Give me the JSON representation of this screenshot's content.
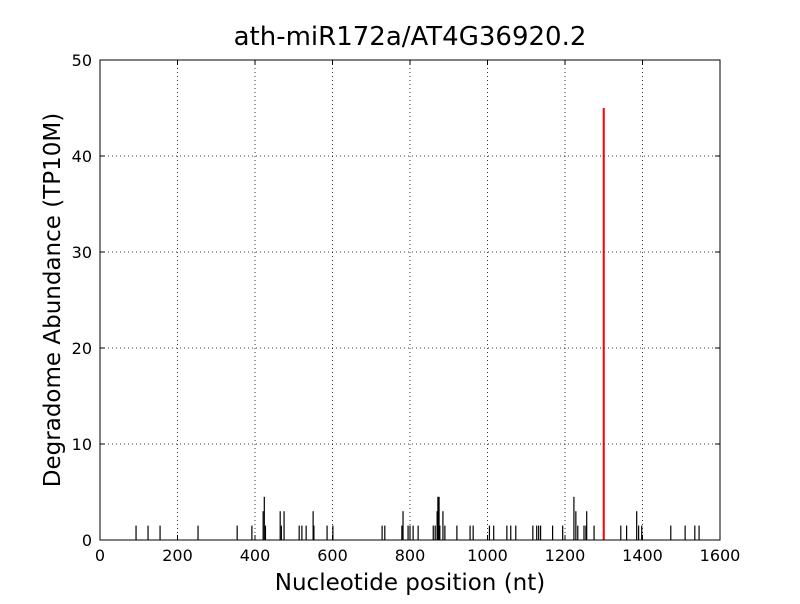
{
  "chart_data": {
    "type": "stem",
    "title": "ath-miR172a/AT4G36920.2",
    "x_label": "Nucleotide position (nt)",
    "y_label": "Degradome Abundance (TP10M)",
    "xlim": [
      0,
      1600
    ],
    "ylim": [
      0,
      50
    ],
    "xticks": [
      0,
      200,
      400,
      600,
      800,
      1000,
      1200,
      1400,
      1600
    ],
    "yticks": [
      0,
      10,
      20,
      30,
      40,
      50
    ],
    "grid": true,
    "series": [
      {
        "color": "#000000",
        "x": [
          93,
          124,
          155,
          253,
          354,
          392,
          421,
          424,
          427,
          465,
          468,
          475,
          514,
          521,
          532,
          550,
          552,
          586,
          601,
          728,
          735,
          779,
          782,
          795,
          800,
          808,
          821,
          860,
          865,
          870,
          872,
          875,
          877,
          885,
          890,
          921,
          955,
          963,
          1005,
          1016,
          1050,
          1060,
          1073,
          1117,
          1127,
          1132,
          1137,
          1168,
          1194,
          1223,
          1228,
          1233,
          1249,
          1254,
          1256,
          1275,
          1344,
          1359,
          1385,
          1390,
          1398,
          1473,
          1510,
          1535,
          1546
        ],
        "values": [
          1.5,
          1.5,
          1.5,
          1.5,
          1.5,
          1.5,
          3,
          4.5,
          1.5,
          3,
          1.5,
          3,
          1.5,
          1.5,
          1.5,
          3,
          1.5,
          1.5,
          1.5,
          1.5,
          1.5,
          1.5,
          3,
          1.5,
          1.5,
          1.5,
          1.5,
          1.5,
          1.5,
          3,
          4.5,
          4.5,
          1.5,
          3,
          1.5,
          1.5,
          1.5,
          1.5,
          1.5,
          1.5,
          1.5,
          1.5,
          1.5,
          1.5,
          1.5,
          1.5,
          1.5,
          1.5,
          1.5,
          4.5,
          3,
          1.5,
          1.5,
          1.5,
          3,
          1.5,
          1.5,
          1.5,
          3,
          1.5,
          1.5,
          1.5,
          1.5,
          1.5,
          1.5
        ]
      },
      {
        "color": "#ff0000",
        "x": [
          1300
        ],
        "values": [
          45
        ]
      }
    ]
  }
}
